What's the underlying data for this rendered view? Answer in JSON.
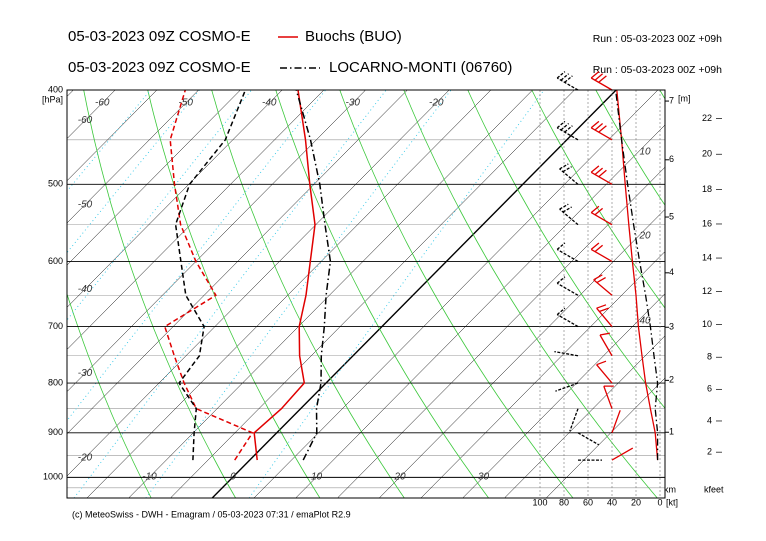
{
  "chart_data": {
    "type": "emagram",
    "ylabel": "[hPa]",
    "ylim": [
      1050,
      400
    ],
    "yticks": [
      400,
      500,
      600,
      700,
      800,
      900,
      1000
    ],
    "log_y": true,
    "xticks": [
      -10,
      0,
      10,
      20,
      30
    ],
    "isotherm_labels_top": [
      -60,
      -50,
      -40,
      -30,
      -20
    ],
    "isotherm_labels_left": [
      -60,
      -50,
      -40,
      -30,
      -20
    ],
    "annotations": [
      "10",
      "20",
      "40"
    ],
    "height_axis": {
      "label": "[m]",
      "unit": "km",
      "ticks": [
        1,
        2,
        3,
        4,
        5,
        6,
        7
      ]
    },
    "kfeet_axis": {
      "label": "kfeet",
      "ticks": [
        2,
        4,
        6,
        8,
        10,
        12,
        14,
        16,
        18,
        20,
        22
      ]
    },
    "wind_axis": {
      "label": "[kt]",
      "lim": [
        0,
        100
      ],
      "ticks": [
        100,
        80,
        60,
        40,
        20,
        0
      ]
    },
    "grid": true,
    "series": [
      {
        "name": "Buochs (BUO)",
        "label": "05-03-2023 09Z COSMO-E",
        "run": "Run : 05-03-2023 00Z +09h",
        "color": "#e00000",
        "line_style": "solid",
        "pressure": [
          960,
          900,
          850,
          800,
          750,
          700,
          650,
          600,
          550,
          500,
          450,
          400
        ],
        "temperature": [
          0.9,
          -2.7,
          -2.3,
          -2.6,
          -6.4,
          -9.9,
          -12.8,
          -16.3,
          -20.1,
          -25.5,
          -31.3,
          -38.1
        ],
        "dewpoint": [
          -1.8,
          -2.9,
          -12.5,
          -17.0,
          -21.4,
          -26.0,
          -23.6,
          -30.0,
          -36.2,
          -41.7,
          -47.5,
          -51.6
        ],
        "wind_speed": [
          2,
          4,
          8,
          12,
          15,
          18,
          20,
          23,
          26,
          29,
          32,
          36
        ],
        "wind_direction": [
          60,
          20,
          340,
          320,
          330,
          320,
          310,
          300,
          300,
          300,
          300,
          300
        ]
      },
      {
        "name": "LOCARNO-MONTI (06760)",
        "label": "05-03-2023 09Z COSMO-E",
        "run": "Run : 05-03-2023 00Z +09h",
        "color": "#000000",
        "line_style": "dashdot",
        "pressure": [
          960,
          900,
          850,
          800,
          750,
          700,
          650,
          600,
          550,
          500,
          450,
          400
        ],
        "temperature": [
          6.4,
          4.8,
          1.9,
          -0.6,
          -3.8,
          -6.9,
          -10.4,
          -13.9,
          -18.9,
          -24.3,
          -30.7,
          -38.3
        ],
        "dewpoint": [
          -6.8,
          -9.9,
          -12.5,
          -17.6,
          -18.4,
          -21.3,
          -27.2,
          -31.8,
          -36.8,
          -39.9,
          -40.9,
          -44.4
        ],
        "wind_speed": [
          2,
          2,
          4,
          2,
          5,
          8,
          12,
          17,
          22,
          27,
          32,
          37
        ],
        "wind_direction": [
          90,
          120,
          200,
          250,
          280,
          300,
          300,
          300,
          310,
          310,
          300,
          300
        ]
      }
    ],
    "footer": "(c) MeteoSwiss - DWH - Emagram / 05-03-2023  07:31 / emaPlot R2.9"
  }
}
